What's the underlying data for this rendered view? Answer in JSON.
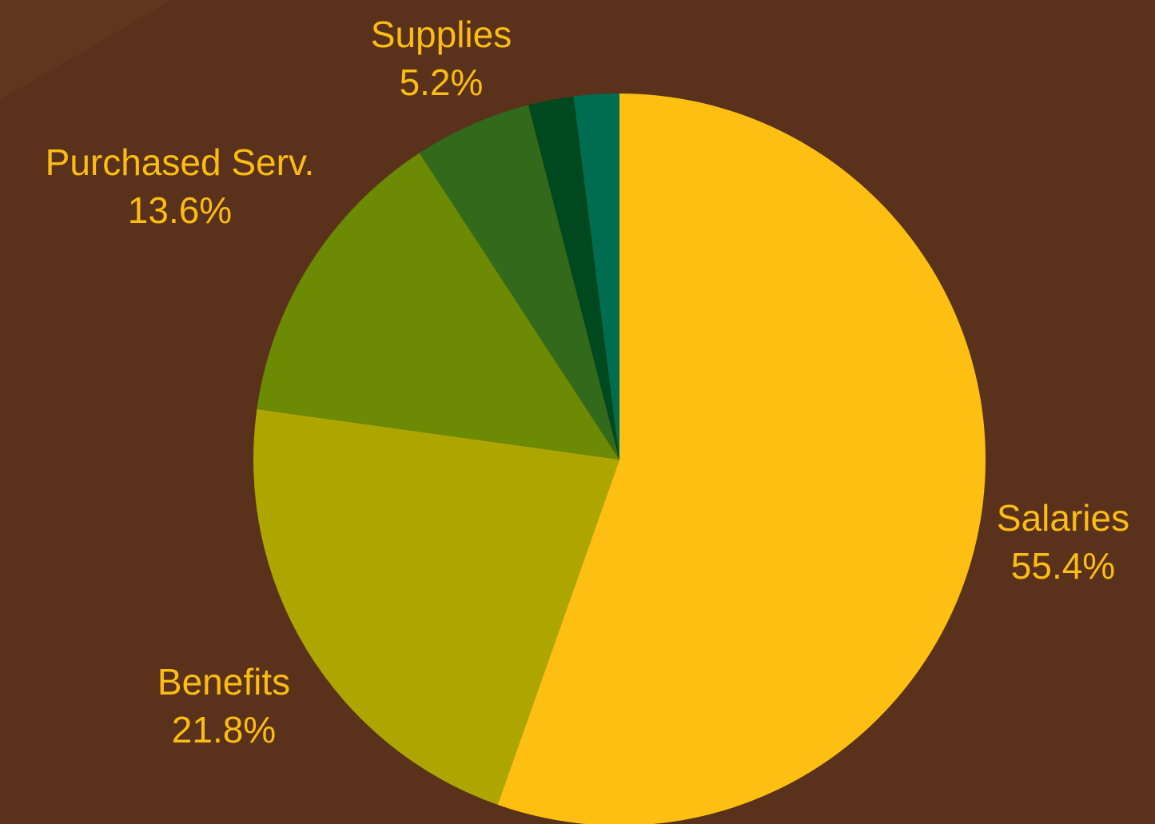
{
  "colors": {
    "background": "#5a311b",
    "label_text": "#fbbd13"
  },
  "chart_data": {
    "type": "pie",
    "start_angle_deg": 0,
    "direction": "clockwise",
    "slices": [
      {
        "label": "Salaries",
        "value_label": "55.4%",
        "value": 55.4,
        "color": "#fdbf11"
      },
      {
        "label": "Benefits",
        "value_label": "21.8%",
        "value": 21.8,
        "color": "#aea600"
      },
      {
        "label": "Purchased Serv.",
        "value_label": "13.6%",
        "value": 13.6,
        "color": "#6c8a03"
      },
      {
        "label": "Supplies",
        "value_label": "5.2%",
        "value": 5.2,
        "color": "#33691a"
      },
      {
        "label": "",
        "value_label": "",
        "value": 2.0,
        "color": "#00481d"
      },
      {
        "label": "",
        "value_label": "",
        "value": 2.0,
        "color": "#006d50"
      }
    ]
  }
}
